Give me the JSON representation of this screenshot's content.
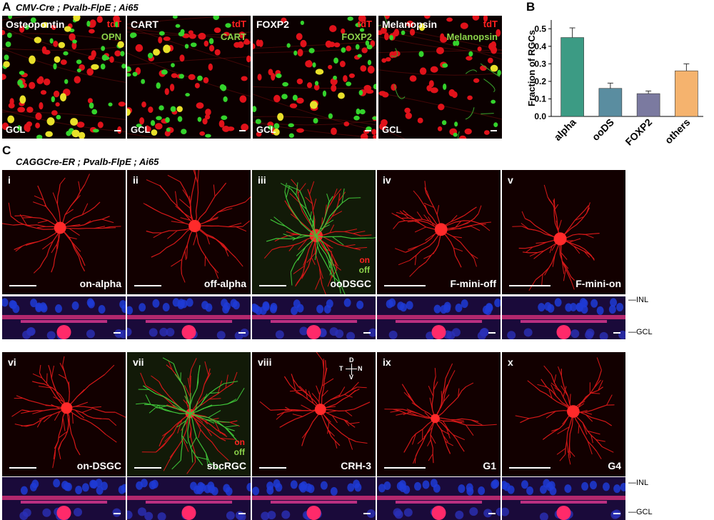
{
  "panelA": {
    "letter": "A",
    "genotype": "CMV-Cre ; Pvalb-FlpE ; Ai65",
    "images": [
      {
        "title": "Osteopontin",
        "tag1": "tdT",
        "tag2": "OPN",
        "layer": "GCL"
      },
      {
        "title": "CART",
        "tag1": "tdT",
        "tag2": "CART",
        "layer": "GCL"
      },
      {
        "title": "FOXP2",
        "tag1": "tdT",
        "tag2": "FOXP2",
        "layer": "GCL"
      },
      {
        "title": "Melanopsin",
        "tag1": "tdT",
        "tag2": "Melanopsin",
        "layer": "GCL"
      }
    ]
  },
  "panelB": {
    "letter": "B",
    "chart_data": {
      "type": "bar",
      "categories": [
        "alpha",
        "ooDS",
        "FOXP2",
        "others"
      ],
      "values": [
        0.45,
        0.16,
        0.13,
        0.26
      ],
      "errors": [
        0.055,
        0.03,
        0.015,
        0.04
      ],
      "colors": [
        "#3c9b84",
        "#5a8da0",
        "#7b7aa0",
        "#f5b36e"
      ],
      "ylabel": "Fraction of RGCs",
      "ylim": [
        0,
        0.55
      ],
      "yticks": [
        "0.0",
        "0.1",
        "0.2",
        "0.3",
        "0.4",
        "0.5"
      ]
    }
  },
  "panelC": {
    "letter": "C",
    "genotype": "CAGGCre-ER ; Pvalb-FlpE ; Ai65",
    "row1": [
      {
        "numeral": "i",
        "name": "on-alpha"
      },
      {
        "numeral": "ii",
        "name": "off-alpha"
      },
      {
        "numeral": "iii",
        "name": "ooDSGC",
        "on": "on",
        "off": "off"
      },
      {
        "numeral": "iv",
        "name": "F-mini-off"
      },
      {
        "numeral": "v",
        "name": "F-mini-on"
      }
    ],
    "row2": [
      {
        "numeral": "vi",
        "name": "on-DSGC"
      },
      {
        "numeral": "vii",
        "name": "sbcRGC",
        "on": "on",
        "off": "off"
      },
      {
        "numeral": "viii",
        "name": "CRH-3",
        "compass": {
          "d": "D",
          "t": "T",
          "n": "N",
          "v": "V"
        }
      },
      {
        "numeral": "ix",
        "name": "G1"
      },
      {
        "numeral": "x",
        "name": "G4"
      }
    ],
    "layers": {
      "inl": "—INL",
      "gcl": "—GCL"
    }
  }
}
